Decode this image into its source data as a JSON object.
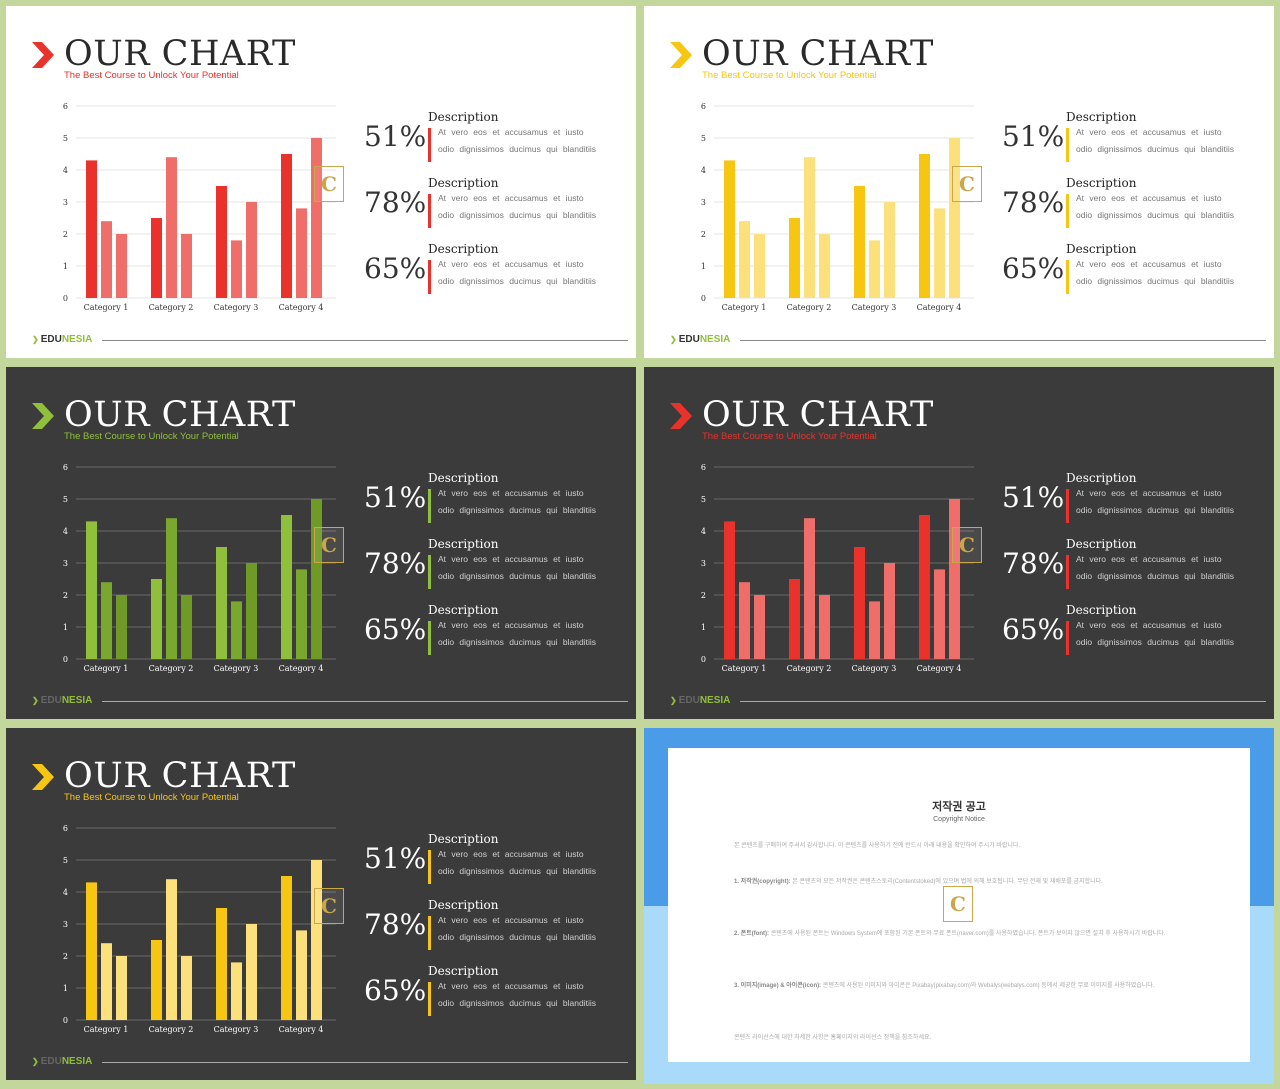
{
  "slides": [
    {
      "theme": "light",
      "accent": "#e8322b",
      "accent_light": "#f06e6a",
      "accent_dark": "#e8322b"
    },
    {
      "theme": "light",
      "accent": "#f7c612",
      "accent_light": "#fbe07c",
      "accent_dark": "#f7c612"
    },
    {
      "theme": "dark",
      "accent": "#8fbf3b",
      "accent_light": "#8fbf3b",
      "accent_dark": "#6e9a25"
    },
    {
      "theme": "dark",
      "accent": "#e8322b",
      "accent_light": "#f06e6a",
      "accent_dark": "#e8322b"
    },
    {
      "theme": "dark",
      "accent": "#f7c612",
      "accent_light": "#fbe07c",
      "accent_dark": "#f7c612"
    }
  ],
  "common": {
    "title": "OUR CHART",
    "subtitle": "The Best Course to Unlock Your Potential",
    "brand_left": "EDU",
    "brand_right": "NESIA",
    "brand_accent": "#8fbf3b",
    "logo_letter": "C",
    "stats": [
      {
        "pct": "51%",
        "title": "Description",
        "text": "At vero eos et accusamus et iusto odio dignissimos ducimus qui blanditiis"
      },
      {
        "pct": "78%",
        "title": "Description",
        "text": "At vero eos et accusamus et iusto odio dignissimos ducimus qui blanditiis"
      },
      {
        "pct": "65%",
        "title": "Description",
        "text": "At vero eos et accusamus et iusto odio dignissimos ducimus qui blanditiis"
      }
    ]
  },
  "chart_data": {
    "type": "bar",
    "categories": [
      "Category 1",
      "Category 2",
      "Category 3",
      "Category 4"
    ],
    "series": [
      {
        "values": [
          4.3,
          2.5,
          3.5,
          4.5
        ]
      },
      {
        "values": [
          2.4,
          4.4,
          1.8,
          2.8
        ]
      },
      {
        "values": [
          2.0,
          2.0,
          3.0,
          5.0
        ]
      }
    ],
    "ylim": [
      0,
      6
    ],
    "yticks": [
      "0",
      "1",
      "2",
      "3",
      "4",
      "5",
      "6"
    ],
    "grid": true
  },
  "notice": {
    "title": "저작권 공고",
    "subtitle": "Copyright Notice",
    "intro": "본 콘텐츠를 구매하여 주셔서 감사합니다. 이 콘텐츠를 사용하기 전에 반드시 아래 내용을 확인하여 주시기 바랍니다.",
    "item1_label": "1. 저작권(copyright):",
    "item1": "본 콘텐츠의 모든 저작권은 콘텐츠스토리(Contentstoked)에 있으며 법에 의해 보호됩니다. 무단 전재 및 재배포를 금지합니다.",
    "item2_label": "2. 폰트(font):",
    "item2": "콘텐츠에 사용된 폰트는 Windows System에 포함된 기본 폰트와 무료 폰트(naver.com)를 사용하였습니다. 폰트가 보이지 않으면 설치 후 사용하시기 바랍니다.",
    "item3_label": "3. 이미지(image) & 아이콘(icon):",
    "item3": "콘텐츠에 사용된 이미지와 아이콘은 Pixabay(pixabay.com)와 Webalys(webalys.com) 등에서 제공한 무료 이미지를 사용하였습니다.",
    "outro": "콘텐츠 라이선스에 대한 자세한 사항은 홈페이지의 라이선스 정책을 참조하세요.",
    "logo_letter": "C"
  }
}
